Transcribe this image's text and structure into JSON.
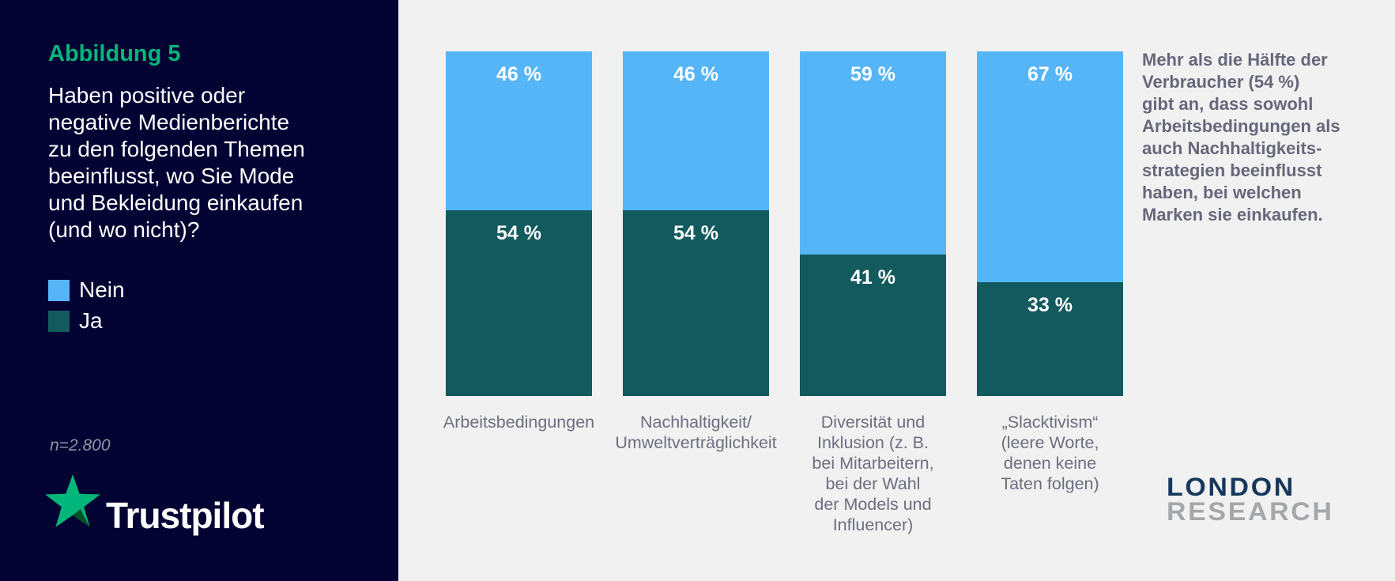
{
  "sidebar": {
    "figure_label": "Abbildung 5",
    "question_lines": [
      "Haben positive oder",
      "negative Medienberichte",
      "zu den folgenden Themen",
      "beeinflusst, wo Sie Mode",
      "und Bekleidung einkaufen",
      "(und wo nicht)?"
    ],
    "legend": [
      {
        "label": "Nein",
        "color": "#56B5F7"
      },
      {
        "label": "Ja",
        "color": "#135A5F"
      }
    ],
    "sample_size": "n=2.800",
    "brand": "Trustpilot",
    "brand_star_color": "#00B67A",
    "brand_star_shadow_color": "#005128",
    "background_color": "#020233"
  },
  "chart_data": {
    "type": "bar",
    "stacked": true,
    "orientation": "vertical",
    "unit": "%",
    "grid": false,
    "legend_position": "left-sidebar",
    "ylim": [
      0,
      100
    ],
    "categories": [
      "Arbeitsbedingungen",
      "Nachhaltigkeit/Umweltverträglichkeit",
      "Diversität und Inklusion (z. B. bei Mitarbeitern, bei der Wahl der Models und Influencer)",
      "„Slacktivism“ (leere Worte, denen keine Taten folgen)"
    ],
    "categories_lines": [
      [
        "Arbeitsbedingungen"
      ],
      [
        "Nachhaltigkeit/",
        "Umweltverträglichkeit"
      ],
      [
        "Diversität und",
        "Inklusion (z. B.",
        "bei Mitarbeitern,",
        "bei der Wahl",
        "der Models und",
        "Influencer)"
      ],
      [
        "„Slacktivism“",
        "(leere Worte,",
        "denen keine",
        "Taten folgen)"
      ]
    ],
    "series": [
      {
        "name": "Nein",
        "color": "#56B5F7",
        "values": [
          46,
          46,
          59,
          67
        ],
        "labels": [
          "46 %",
          "46 %",
          "59 %",
          "67 %"
        ]
      },
      {
        "name": "Ja",
        "color": "#135A5F",
        "values": [
          54,
          54,
          41,
          33
        ],
        "labels": [
          "54 %",
          "54 %",
          "41 %",
          "33 %"
        ]
      }
    ]
  },
  "annotation": {
    "lines": [
      "Mehr als die Hälfte der",
      "Verbraucher (54 %)",
      "gibt an, dass sowohl",
      "Arbeitsbedingungen als",
      "auch Nachhaltigkeits-",
      "strategien beeinflusst",
      "haben, bei welchen",
      "Marken sie einkaufen."
    ]
  },
  "research_logo": {
    "line1": "LONDON",
    "line2": "RESEARCH"
  },
  "colors": {
    "page_background": "#F0F1F0",
    "accent_green": "#00B67A",
    "annotation_text": "#67677C",
    "category_text": "#6E6E80"
  }
}
